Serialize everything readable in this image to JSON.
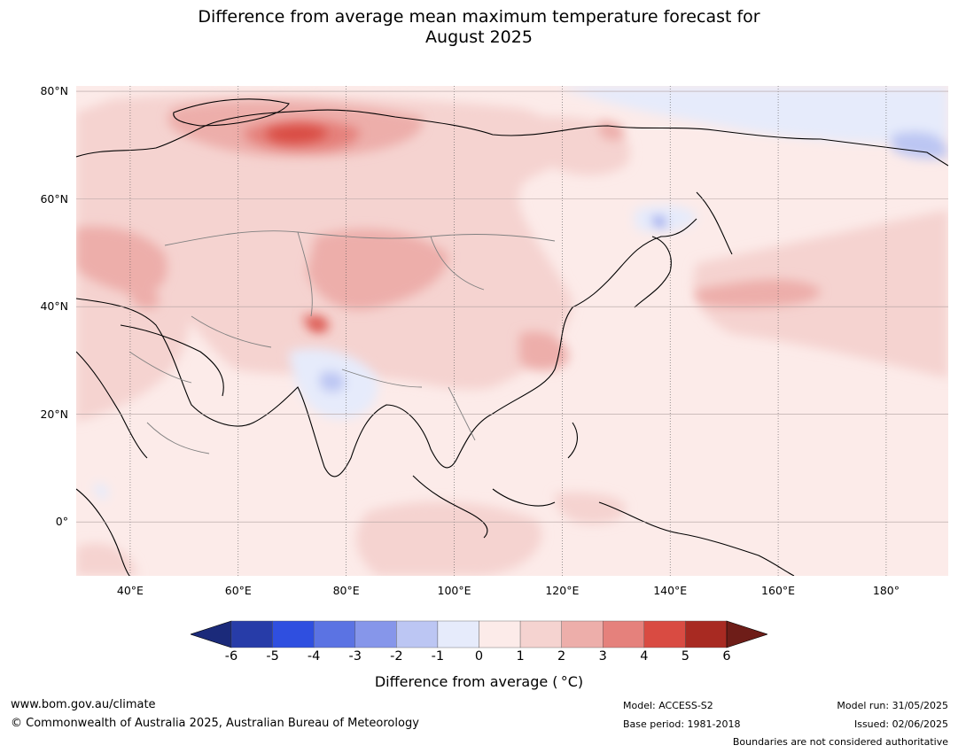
{
  "title_line1": "Difference from average mean maximum temperature forecast for",
  "title_line2": "August 2025",
  "map": {
    "lat_labels": [
      "80°N",
      "60°N",
      "40°N",
      "20°N",
      "0°"
    ],
    "lon_labels": [
      "40°E",
      "60°E",
      "80°E",
      "100°E",
      "120°E",
      "140°E",
      "160°E",
      "180°"
    ],
    "lat_values": [
      80,
      60,
      40,
      20,
      0
    ],
    "lon_values": [
      40,
      60,
      80,
      100,
      120,
      140,
      160,
      180
    ],
    "extent": {
      "lon_min": 30,
      "lon_max": 191.5,
      "lat_min": -10,
      "lat_max": 81
    }
  },
  "colorbar": {
    "ticks": [
      "-6",
      "-5",
      "-4",
      "-3",
      "-2",
      "-1",
      "0",
      "1",
      "2",
      "3",
      "4",
      "5",
      "6"
    ],
    "colors": [
      "#273ca8",
      "#2f4fe0",
      "#5b73e3",
      "#8696ea",
      "#bcc6f3",
      "#e6ebfb",
      "#fcebe9",
      "#f5d3d0",
      "#edaeaa",
      "#e5817c",
      "#d94b42",
      "#a82a22"
    ],
    "under_color": "#1b2a7a",
    "over_color": "#6e1d18",
    "label": "Difference from average ( °C)"
  },
  "footer": {
    "website": "www.bom.gov.au/climate",
    "copyright": "© Commonwealth of Australia 2025, Australian Bureau of Meteorology",
    "model": "Model: ACCESS-S2",
    "base_period": "Base period: 1981-2018",
    "model_run": "Model run: 31/05/2025",
    "issued": "Issued: 02/06/2025",
    "disclaimer": "Boundaries are not considered authoritative"
  }
}
